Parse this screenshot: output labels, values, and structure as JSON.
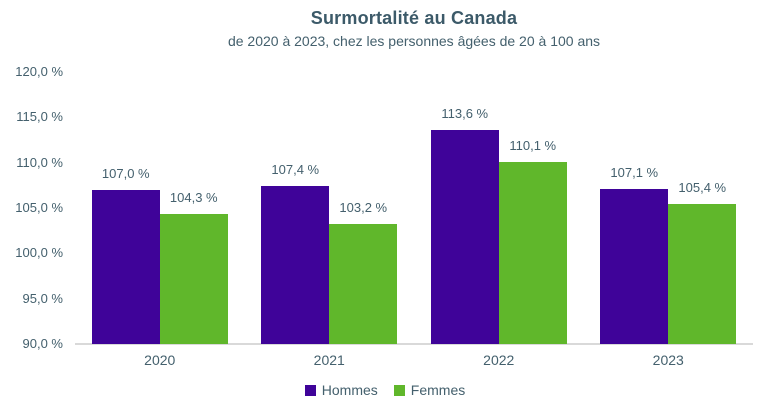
{
  "chart_data": {
    "type": "bar",
    "title": "Surmortalité au Canada",
    "subtitle": "de 2020 à 2023, chez les personnes âgées de 20 à 100 ans",
    "categories": [
      "2020",
      "2021",
      "2022",
      "2023"
    ],
    "series": [
      {
        "name": "Hommes",
        "color": "#3F0399",
        "values": [
          107.0,
          107.4,
          113.6,
          107.1
        ],
        "data_labels": [
          "107,0 %",
          "107,4 %",
          "113,6 %",
          "107,1 %"
        ]
      },
      {
        "name": "Femmes",
        "color": "#60B72B",
        "values": [
          104.3,
          103.2,
          110.1,
          105.4
        ],
        "data_labels": [
          "104,3 %",
          "103,2 %",
          "110,1 %",
          "105,4 %"
        ]
      }
    ],
    "y_axis": {
      "min": 90,
      "max": 120,
      "step": 5,
      "tick_labels": [
        "90,0 %",
        "95,0 %",
        "100,0 %",
        "105,0 %",
        "110,0 %",
        "115,0 %",
        "120,0 %"
      ]
    },
    "legend": {
      "position": "bottom",
      "entries": [
        {
          "label": "Hommes",
          "color": "#3F0399"
        },
        {
          "label": "Femmes",
          "color": "#60B72B"
        }
      ]
    },
    "grid": false,
    "colors": {
      "text": "#44606D",
      "title_text": "#3C5A69",
      "axis_line": "#D9D9D9",
      "background": "#FFFFFF"
    }
  }
}
